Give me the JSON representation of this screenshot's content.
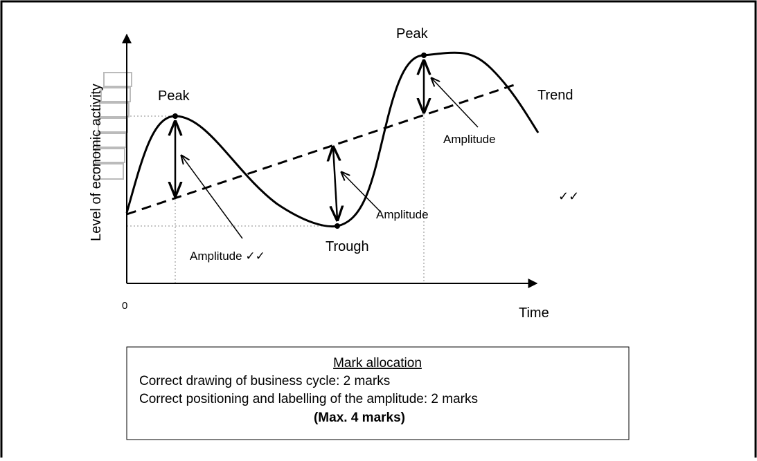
{
  "diagram": {
    "y_axis_label": "Level of economic activity",
    "x_axis_label": "Time",
    "origin_label": "0",
    "labels": {
      "peak_1": "Peak",
      "peak_2": "Peak",
      "trend": "Trend",
      "trough": "Trough",
      "amplitude_1": "Amplitude ✓✓",
      "amplitude_2": "Amplitude",
      "amplitude_3": "Amplitude",
      "ticks": "✓✓"
    }
  },
  "mark_allocation": {
    "title": "Mark allocation",
    "lines": [
      "Correct drawing of business cycle: 2 marks",
      "Correct positioning and labelling of the amplitude: 2 marks"
    ],
    "max": "(Max. 4 marks)"
  }
}
